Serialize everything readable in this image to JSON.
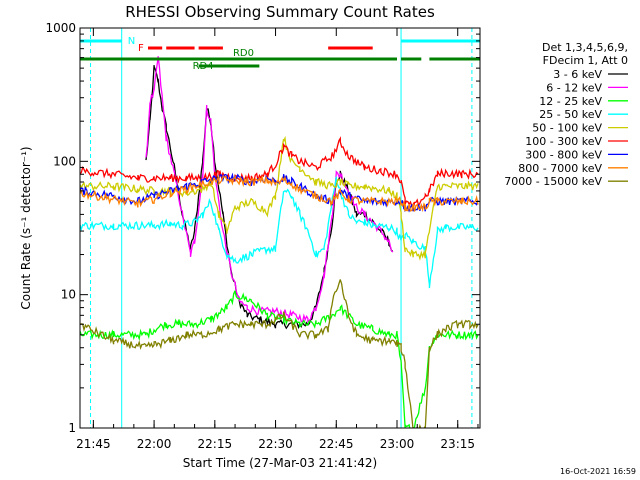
{
  "chart_data": {
    "type": "line",
    "title": "RHESSI Observing Summary Count Rates",
    "xlabel": "Start Time (27-Mar-03 21:41:42)",
    "ylabel": "Count Rate (s⁻¹ detector⁻¹)",
    "y_scale": "log",
    "xlim_min": [
      41.7,
      140.5
    ],
    "ylim": [
      1,
      1000
    ],
    "x_ticks": [
      {
        "label": "21:45",
        "min": 45
      },
      {
        "label": "22:00",
        "min": 60
      },
      {
        "label": "22:15",
        "min": 75
      },
      {
        "label": "22:30",
        "min": 90
      },
      {
        "label": "22:45",
        "min": 105
      },
      {
        "label": "23:00",
        "min": 120
      },
      {
        "label": "23:15",
        "min": 135
      }
    ],
    "y_ticks": [
      {
        "label": "1",
        "v": 1
      },
      {
        "label": "10",
        "v": 10
      },
      {
        "label": "100",
        "v": 100
      },
      {
        "label": "1000",
        "v": 1000
      }
    ],
    "legend_header": [
      "Det 1,3,4,5,6,9,",
      "FDecim 1, Att 0"
    ],
    "legend_position": "right",
    "timestamp": "16-Oct-2021 16:59",
    "series": [
      {
        "name": "3 - 6 keV",
        "color": "#000000",
        "x": [
          41.7,
          52,
          56,
          58,
          59,
          60,
          61,
          62,
          63,
          65,
          67,
          69,
          70,
          72,
          73,
          74,
          75,
          77,
          79,
          81,
          83,
          86,
          90,
          94,
          98,
          100,
          102,
          104,
          105,
          106,
          108,
          110,
          112,
          114,
          116,
          118,
          119,
          121
        ],
        "y": [
          null,
          null,
          null,
          100,
          200,
          500,
          400,
          250,
          180,
          90,
          40,
          22,
          30,
          100,
          250,
          200,
          100,
          40,
          15,
          9,
          7,
          6.5,
          6,
          6,
          6,
          8,
          15,
          35,
          70,
          80,
          60,
          40,
          40,
          35,
          30,
          25,
          20,
          null
        ]
      },
      {
        "name": "6 - 12 keV",
        "color": "#ff00ff",
        "x": [
          58,
          59,
          60,
          61,
          62,
          63,
          65,
          67,
          69,
          70,
          72,
          73,
          74,
          75,
          77,
          79,
          81,
          83,
          86,
          90,
          94,
          98,
          100,
          102,
          104,
          105,
          106,
          108,
          110,
          112,
          114,
          116,
          118,
          119
        ],
        "y": [
          100,
          280,
          330,
          600,
          300,
          150,
          80,
          40,
          20,
          25,
          80,
          250,
          200,
          80,
          30,
          15,
          9,
          8,
          7.5,
          7.5,
          7,
          6.5,
          8,
          14,
          40,
          80,
          80,
          60,
          45,
          40,
          35,
          30,
          25,
          20
        ]
      },
      {
        "name": "12 - 25 keV",
        "color": "#00ff00",
        "x": [
          41.7,
          50,
          58,
          60,
          63,
          66,
          70,
          74,
          78,
          80,
          84,
          88,
          92,
          96,
          100,
          104,
          106,
          110,
          114,
          118,
          120,
          121,
          122,
          124,
          127,
          128,
          130,
          132,
          135,
          138,
          140
        ],
        "y": [
          5,
          5,
          5,
          5.5,
          6,
          6,
          6,
          6.5,
          8,
          10,
          9,
          7,
          6.5,
          6,
          6,
          7,
          8,
          6,
          5.5,
          5,
          5,
          3,
          1,
          1,
          2,
          4,
          5,
          5,
          5,
          5,
          5
        ]
      },
      {
        "name": "25 - 50 keV",
        "color": "#00ffff",
        "x": [
          41.7,
          50,
          56,
          60,
          64,
          67,
          70,
          72,
          74,
          76,
          78,
          80,
          84,
          88,
          90,
          92,
          94,
          96,
          98,
          100,
          102,
          104,
          105,
          106,
          108,
          110,
          112,
          114,
          118,
          120,
          121,
          122,
          124,
          127,
          128,
          130,
          132,
          135,
          138,
          140
        ],
        "y": [
          33,
          33,
          33,
          33,
          34,
          33,
          35,
          40,
          50,
          30,
          20,
          18,
          20,
          22,
          22,
          60,
          55,
          40,
          30,
          20,
          22,
          50,
          75,
          60,
          40,
          35,
          35,
          33,
          32,
          30,
          25,
          28,
          25,
          22,
          12,
          30,
          32,
          32,
          32,
          32
        ]
      },
      {
        "name": "50 - 100 keV",
        "color": "#cccc00",
        "x": [
          41.7,
          50,
          56,
          60,
          64,
          68,
          72,
          74,
          76,
          78,
          80,
          84,
          88,
          90,
          92,
          94,
          96,
          100,
          104,
          106,
          108,
          112,
          118,
          120,
          121,
          122,
          124,
          127,
          128,
          130,
          132,
          136,
          140
        ],
        "y": [
          65,
          65,
          62,
          60,
          60,
          58,
          62,
          70,
          40,
          30,
          45,
          50,
          42,
          55,
          150,
          100,
          90,
          70,
          65,
          70,
          65,
          65,
          60,
          55,
          40,
          22,
          20,
          20,
          30,
          65,
          65,
          65,
          65
        ]
      },
      {
        "name": "100 - 300 keV",
        "color": "#ff0000",
        "x": [
          41.7,
          50,
          56,
          60,
          64,
          68,
          72,
          76,
          80,
          84,
          88,
          90,
          92,
          94,
          96,
          100,
          104,
          106,
          108,
          112,
          116,
          120,
          121,
          122,
          124,
          127,
          128,
          130,
          132,
          136,
          140
        ],
        "y": [
          85,
          80,
          75,
          75,
          75,
          75,
          75,
          80,
          75,
          75,
          80,
          95,
          130,
          110,
          100,
          90,
          110,
          140,
          110,
          90,
          85,
          80,
          70,
          50,
          45,
          55,
          60,
          80,
          82,
          80,
          80
        ]
      },
      {
        "name": "300 - 800 keV",
        "color": "#0000ff",
        "x": [
          41.7,
          50,
          56,
          60,
          64,
          68,
          72,
          76,
          80,
          84,
          88,
          90,
          92,
          94,
          96,
          100,
          104,
          106,
          108,
          112,
          116,
          120,
          121,
          122,
          124,
          127,
          128,
          130,
          132,
          136,
          140
        ],
        "y": [
          60,
          55,
          50,
          55,
          60,
          65,
          70,
          75,
          75,
          70,
          75,
          70,
          75,
          70,
          65,
          55,
          50,
          60,
          55,
          50,
          50,
          50,
          50,
          45,
          45,
          45,
          50,
          50,
          50,
          50,
          50
        ]
      },
      {
        "name": "800 - 7000 keV",
        "color": "#ff8000",
        "x": [
          41.7,
          50,
          56,
          60,
          64,
          68,
          72,
          76,
          80,
          84,
          88,
          90,
          92,
          94,
          96,
          100,
          104,
          106,
          108,
          112,
          116,
          120,
          121,
          122,
          124,
          127,
          128,
          130,
          132,
          136,
          140
        ],
        "y": [
          58,
          52,
          48,
          52,
          58,
          62,
          68,
          72,
          72,
          70,
          72,
          68,
          72,
          68,
          62,
          55,
          50,
          58,
          52,
          50,
          50,
          50,
          50,
          45,
          45,
          45,
          50,
          50,
          50,
          50,
          50
        ]
      },
      {
        "name": "7000 - 15000 keV",
        "color": "#808000",
        "x": [
          41.7,
          50,
          58,
          60,
          64,
          68,
          72,
          76,
          80,
          84,
          88,
          90,
          92,
          94,
          96,
          100,
          103,
          104,
          106,
          108,
          110,
          114,
          118,
          120,
          121,
          122,
          124,
          127,
          128,
          130,
          132,
          135,
          138,
          140
        ],
        "y": [
          6,
          4.5,
          4,
          4.2,
          4.5,
          5,
          5,
          5.5,
          6,
          6,
          6,
          6.5,
          7,
          6,
          5,
          5,
          5.5,
          9,
          13,
          7,
          5,
          4.5,
          4.5,
          4.3,
          4,
          3,
          1,
          1,
          4,
          5,
          5.5,
          6,
          6,
          6
        ]
      }
    ],
    "status_bars": [
      {
        "label": "N",
        "color": "#00ffff",
        "row": 1,
        "segments": [
          [
            41.7,
            52
          ],
          [
            121,
            140.5
          ]
        ]
      },
      {
        "label": "F",
        "color": "#ff0000",
        "row": 2,
        "segments": [
          [
            58.5,
            62
          ],
          [
            63,
            70
          ],
          [
            71,
            77
          ],
          [
            103,
            114
          ]
        ]
      },
      {
        "label": "RD0",
        "color": "#008000",
        "row": 3,
        "segments": [
          [
            41.7,
            120
          ],
          [
            121,
            126
          ],
          [
            128,
            140.5
          ]
        ]
      },
      {
        "label": "RD4",
        "color": "#008000",
        "row": 4,
        "segments": [
          [
            71,
            78
          ],
          [
            78,
            86
          ]
        ]
      }
    ],
    "vertical_lines": [
      {
        "x": 52,
        "style": "solid"
      },
      {
        "x": 121,
        "style": "solid"
      },
      {
        "x": 44.3,
        "style": "dashed"
      },
      {
        "x": 138.5,
        "style": "dashed"
      }
    ]
  }
}
